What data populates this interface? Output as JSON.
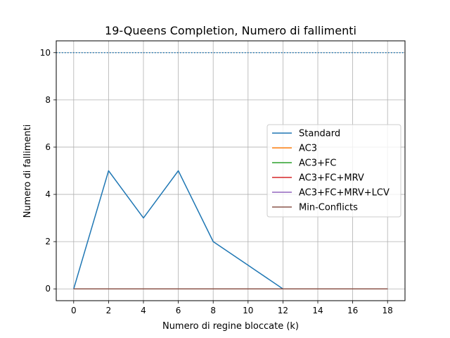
{
  "chart_data": {
    "type": "line",
    "title": "19-Queens Completion, Numero di fallimenti",
    "xlabel": "Numero di regine bloccate (k)",
    "ylabel": "Numero di fallimenti",
    "xlim": [
      -1,
      19
    ],
    "ylim": [
      -0.5,
      10.5
    ],
    "x_ticks": [
      0,
      2,
      4,
      6,
      8,
      10,
      12,
      14,
      16,
      18
    ],
    "y_ticks": [
      0,
      2,
      4,
      6,
      8,
      10
    ],
    "grid": true,
    "legend_position": "center-right",
    "reference_line": {
      "y": 10,
      "style": "dotted",
      "color": "#1f77b4"
    },
    "x": [
      0,
      2,
      4,
      6,
      8,
      10,
      12,
      14,
      16,
      18
    ],
    "series": [
      {
        "name": "Standard",
        "color": "#1f77b4",
        "values": [
          0,
          5,
          3,
          5,
          2,
          1,
          0,
          0,
          0,
          0
        ]
      },
      {
        "name": "AC3",
        "color": "#ff7f0e",
        "values": [
          0,
          0,
          0,
          0,
          0,
          0,
          0,
          0,
          0,
          0
        ]
      },
      {
        "name": "AC3+FC",
        "color": "#2ca02c",
        "values": [
          0,
          0,
          0,
          0,
          0,
          0,
          0,
          0,
          0,
          0
        ]
      },
      {
        "name": "AC3+FC+MRV",
        "color": "#d62728",
        "values": [
          0,
          0,
          0,
          0,
          0,
          0,
          0,
          0,
          0,
          0
        ]
      },
      {
        "name": "AC3+FC+MRV+LCV",
        "color": "#9467bd",
        "values": [
          0,
          0,
          0,
          0,
          0,
          0,
          0,
          0,
          0,
          0
        ]
      },
      {
        "name": "Min-Conflicts",
        "color": "#8c564b",
        "values": [
          0,
          0,
          0,
          0,
          0,
          0,
          0,
          0,
          0,
          0
        ]
      }
    ]
  }
}
